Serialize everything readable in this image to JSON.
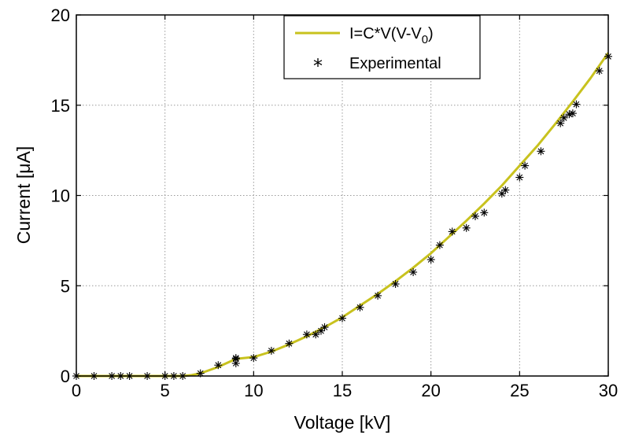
{
  "chart_data": {
    "type": "line",
    "xlabel": "Voltage  [kV]",
    "ylabel": "Current  [μA]",
    "xlim": [
      0,
      30
    ],
    "ylim": [
      0,
      20
    ],
    "xticks": [
      0,
      5,
      10,
      15,
      20,
      25,
      30
    ],
    "yticks": [
      0,
      5,
      10,
      15,
      20
    ],
    "grid": true,
    "legend_position": "top-right",
    "colors": {
      "fit": "#c8c21e",
      "experimental": "#000000"
    },
    "series": [
      {
        "name": "I=C*V(V-V0)",
        "legend_parts": [
          "I=C*V(V-V",
          "0",
          ")"
        ],
        "style": "line",
        "x": [
          0,
          1,
          2,
          3,
          4,
          5,
          6,
          6.5,
          7,
          8,
          9,
          10,
          11,
          12,
          13,
          14,
          15,
          16,
          17,
          18,
          19,
          20,
          21,
          22,
          23,
          24,
          25,
          26,
          27,
          28,
          29,
          30
        ],
        "values": [
          0,
          0,
          0,
          0,
          0,
          0,
          0,
          0.05,
          0.15,
          0.5,
          0.95,
          1.05,
          1.35,
          1.75,
          2.2,
          2.7,
          3.25,
          3.9,
          4.55,
          5.25,
          6.0,
          6.8,
          7.7,
          8.6,
          9.55,
          10.55,
          11.65,
          12.75,
          13.95,
          15.2,
          16.5,
          17.9
        ]
      },
      {
        "name": "Experimental",
        "style": "marker",
        "x": [
          0,
          1,
          2,
          2.5,
          3,
          4,
          5,
          5.5,
          6,
          7,
          8,
          9,
          9,
          9,
          10,
          11,
          12,
          13,
          13.5,
          13.8,
          14,
          15,
          16,
          17,
          18,
          19,
          20,
          20.5,
          21.2,
          22,
          22.5,
          23,
          24,
          24.2,
          25,
          25.3,
          26.2,
          27.3,
          27.5,
          27.8,
          28,
          28.2,
          29.5,
          30
        ],
        "values": [
          0,
          0,
          0,
          0,
          0,
          0,
          0,
          0,
          0,
          0.15,
          0.6,
          0.7,
          0.95,
          1.0,
          1.0,
          1.4,
          1.8,
          2.3,
          2.3,
          2.5,
          2.7,
          3.2,
          3.8,
          4.45,
          5.1,
          5.75,
          6.45,
          7.25,
          8.0,
          8.2,
          8.85,
          9.05,
          10.1,
          10.3,
          11.0,
          11.65,
          12.45,
          14.0,
          14.3,
          14.5,
          14.55,
          15.05,
          16.9,
          17.7
        ]
      }
    ]
  }
}
